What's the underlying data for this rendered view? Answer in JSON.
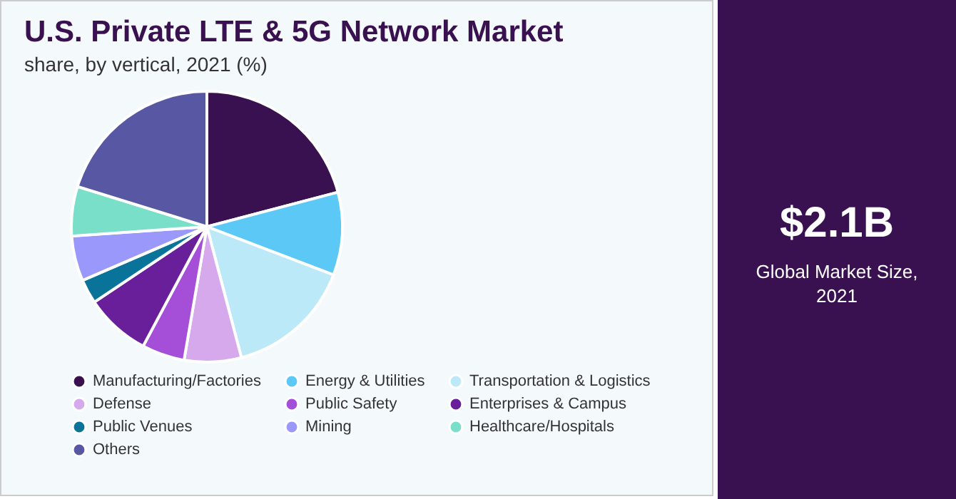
{
  "chart_data": {
    "type": "pie",
    "title": "U.S. Private LTE & 5G Network Market",
    "subtitle": "share, by vertical, 2021 (%)",
    "categories": [
      "Manufacturing/Factories",
      "Energy & Utilities",
      "Transportation & Logistics",
      "Defense",
      "Public Safety",
      "Enterprises & Campus",
      "Public Venues",
      "Mining",
      "Healthcare/Hospitals",
      "Others"
    ],
    "values": [
      20.9,
      9.9,
      15.1,
      6.8,
      5.1,
      7.8,
      2.9,
      5.4,
      5.9,
      20.2
    ],
    "colors": [
      "#3a1150",
      "#5bc8f5",
      "#bce9f8",
      "#d6a8ec",
      "#a54fd8",
      "#6a1f9a",
      "#0a7399",
      "#9a98fb",
      "#7adfc9",
      "#5757a3"
    ],
    "legend": "bottom",
    "annotations": [
      "$2.1B",
      "Global Market Size, 2021"
    ]
  }
}
